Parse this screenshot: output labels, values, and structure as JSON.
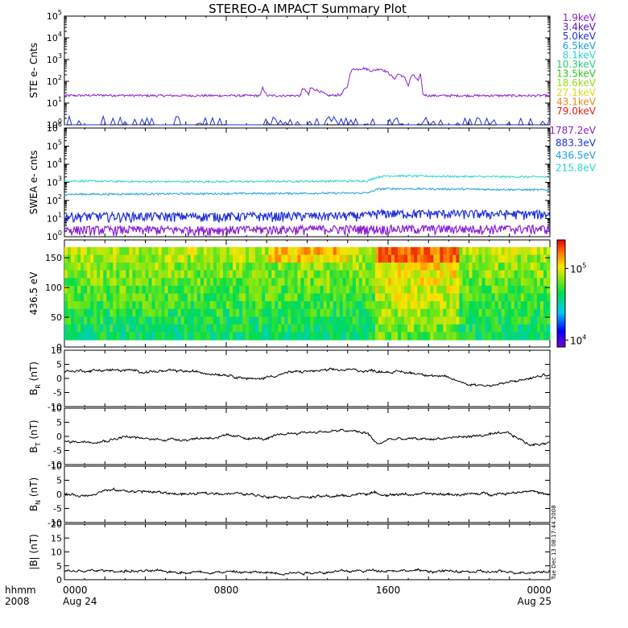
{
  "title": "STEREO-A IMPACT Summary Plot",
  "stamp": "Tue Dec 13 08:17:44 2008",
  "x_axis": {
    "row1_label": "hhmm",
    "row2_label": "2008",
    "ticks": [
      {
        "value": 0,
        "label": "0000",
        "sub": "Aug 24"
      },
      {
        "value": 8,
        "label": "0800",
        "sub": ""
      },
      {
        "value": 16,
        "label": "1600",
        "sub": ""
      },
      {
        "value": 24,
        "label": "0000",
        "sub": "Aug 25"
      }
    ],
    "xlim": [
      0,
      24
    ],
    "unit": "hours"
  },
  "ste_legend": [
    {
      "label": "1.9keV",
      "color": "#8a1fd6"
    },
    {
      "label": "3.4keV",
      "color": "#4b16c8"
    },
    {
      "label": "5.0keV",
      "color": "#1f2fd8"
    },
    {
      "label": "6.5keV",
      "color": "#1aa0e0"
    },
    {
      "label": "8.1keV",
      "color": "#22d8c8"
    },
    {
      "label": "10.3keV",
      "color": "#22d070"
    },
    {
      "label": "13.5keV",
      "color": "#2ac81e"
    },
    {
      "label": "18.6keV",
      "color": "#9ad81a"
    },
    {
      "label": "27.1keV",
      "color": "#e0d81a"
    },
    {
      "label": "43.1keV",
      "color": "#e88a1a"
    },
    {
      "label": "79.0keV",
      "color": "#e0201a"
    }
  ],
  "swea_legend": [
    {
      "label": "1787.2eV",
      "color": "#8a1fd6"
    },
    {
      "label": "883.3eV",
      "color": "#1f2fd8"
    },
    {
      "label": "436.5eV",
      "color": "#1aa0e0"
    },
    {
      "label": "215.8eV",
      "color": "#22d8c8"
    }
  ],
  "panels": [
    {
      "id": "ste",
      "ylabel": "STE e- Cnts"
    },
    {
      "id": "swea",
      "ylabel": "SWEA e- cnts"
    },
    {
      "id": "pad",
      "ylabel": "436.5 eV"
    },
    {
      "id": "br",
      "ylabel": "B",
      "ylabel_sub": "R",
      "ylabel_unit": "(nT)"
    },
    {
      "id": "bt",
      "ylabel": "B",
      "ylabel_sub": "T",
      "ylabel_unit": "(nT)"
    },
    {
      "id": "bn",
      "ylabel": "B",
      "ylabel_sub": "N",
      "ylabel_unit": "(nT)"
    },
    {
      "id": "bmag",
      "ylabel": "|B|",
      "ylabel_unit": "(nT)"
    }
  ],
  "colorbar": {
    "tick_labels": [
      {
        "base": "10",
        "exp": "5",
        "value": 100000
      },
      {
        "base": "10",
        "exp": "4",
        "value": 10000
      }
    ],
    "range": [
      8000,
      250000
    ]
  },
  "chart_data": [
    {
      "type": "line",
      "panel": "ste",
      "ylabel": "STE e- Cnts",
      "yscale": "log",
      "ylim": [
        1,
        100000
      ],
      "yticks": [
        {
          "base": "10",
          "exp": "0"
        },
        {
          "base": "10",
          "exp": "1"
        },
        {
          "base": "10",
          "exp": "2"
        },
        {
          "base": "10",
          "exp": "3"
        },
        {
          "base": "10",
          "exp": "4"
        },
        {
          "base": "10",
          "exp": "5"
        }
      ],
      "series": [
        {
          "name": "1.9keV",
          "color": "#8a1fd6",
          "x": [
            0,
            2,
            4,
            6,
            8,
            9.7,
            9.8,
            10,
            11.7,
            11.75,
            12.1,
            12.15,
            13,
            13.7,
            14,
            14.3,
            14.4,
            14.8,
            15.2,
            15.6,
            16,
            16.3,
            16.5,
            16.8,
            17,
            17.2,
            17.5,
            17.6,
            17.7,
            18,
            20,
            22,
            24
          ],
          "y": [
            22,
            23,
            22,
            22,
            22,
            22,
            50,
            22,
            22,
            50,
            22,
            50,
            22,
            24,
            60,
            420,
            350,
            400,
            300,
            380,
            250,
            120,
            220,
            150,
            60,
            200,
            100,
            200,
            25,
            22,
            22,
            22,
            22
          ]
        },
        {
          "name": "3.4keV",
          "color": "#1f2fd8",
          "x": [
            0,
            24
          ],
          "y": [
            1,
            1
          ]
        }
      ]
    },
    {
      "type": "line",
      "panel": "swea",
      "ylabel": "SWEA e- cnts",
      "yscale": "log",
      "ylim": [
        1,
        1000000
      ],
      "yticks": [
        {
          "base": "10",
          "exp": "0"
        },
        {
          "base": "10",
          "exp": "1"
        },
        {
          "base": "10",
          "exp": "2"
        },
        {
          "base": "10",
          "exp": "3"
        },
        {
          "base": "10",
          "exp": "4"
        },
        {
          "base": "10",
          "exp": "5"
        },
        {
          "base": "10",
          "exp": "6"
        }
      ],
      "series": [
        {
          "name": "215.8eV",
          "color": "#22d8c8",
          "x": [
            0,
            4,
            8,
            12,
            15,
            15.5,
            16,
            20,
            24
          ],
          "y": [
            1200,
            1100,
            1100,
            1150,
            1200,
            2000,
            2300,
            2100,
            2000
          ]
        },
        {
          "name": "436.5eV",
          "color": "#1aa0e0",
          "x": [
            0,
            4,
            8,
            12,
            15,
            15.5,
            16,
            20,
            24
          ],
          "y": [
            220,
            230,
            240,
            250,
            260,
            420,
            450,
            420,
            380
          ]
        },
        {
          "name": "883.3eV",
          "color": "#1f2fd8",
          "x": [
            0,
            8,
            15,
            15.5,
            24
          ],
          "y": [
            14,
            14,
            15,
            20,
            18
          ]
        },
        {
          "name": "1787.2eV",
          "color": "#8a1fd6",
          "x": [
            0,
            8,
            15,
            24
          ],
          "y": [
            2.5,
            2.5,
            2.8,
            2.8
          ]
        }
      ]
    },
    {
      "type": "heatmap",
      "panel": "pad",
      "ylabel": "436.5 eV",
      "xlim": [
        0,
        24
      ],
      "ylim": [
        0,
        180
      ],
      "yticks": [
        0,
        50,
        100,
        150
      ],
      "colorscale": "rainbow",
      "zlim": [
        8000,
        250000
      ]
    },
    {
      "type": "line",
      "panel": "br",
      "ylim": [
        -10,
        10
      ],
      "yticks": [
        -10,
        -5,
        0,
        5,
        10
      ],
      "series": [
        {
          "x": [
            0,
            2,
            4,
            6,
            8,
            9.5,
            10,
            11,
            12,
            14,
            16,
            17,
            18,
            19,
            20,
            21,
            22,
            23,
            24
          ],
          "y": [
            2.5,
            3,
            2.5,
            2.5,
            1.5,
            -0.5,
            0.5,
            2,
            2.5,
            3,
            2.5,
            2,
            1.5,
            0,
            -2,
            -2.5,
            -1.5,
            0,
            1.5
          ]
        }
      ]
    },
    {
      "type": "line",
      "panel": "bt",
      "ylim": [
        -10,
        10
      ],
      "yticks": [
        -10,
        -5,
        0,
        5,
        10
      ],
      "series": [
        {
          "x": [
            0,
            2,
            3,
            4,
            6,
            8,
            10,
            11,
            12,
            14,
            15,
            15.5,
            16,
            18,
            20,
            22,
            23,
            24
          ],
          "y": [
            -2,
            -1.5,
            0,
            -1,
            -1,
            0,
            -1,
            1,
            1.5,
            2,
            1,
            -3,
            -1,
            -1,
            0,
            1,
            -3,
            -2
          ]
        }
      ]
    },
    {
      "type": "line",
      "panel": "bn",
      "ylim": [
        -10,
        10
      ],
      "yticks": [
        -10,
        -5,
        0,
        5,
        10
      ],
      "series": [
        {
          "x": [
            0,
            1,
            2,
            4,
            6,
            8,
            10,
            12,
            14,
            15,
            16,
            18,
            20,
            22,
            23,
            24
          ],
          "y": [
            0,
            -0.5,
            1.5,
            1,
            0,
            0.5,
            -0.5,
            -1,
            -0.5,
            0.5,
            0,
            0,
            0,
            0.5,
            1.5,
            -0.5
          ]
        }
      ]
    },
    {
      "type": "line",
      "panel": "bmag",
      "ylim": [
        0,
        20
      ],
      "yticks": [
        0,
        5,
        10,
        15,
        20
      ],
      "series": [
        {
          "x": [
            0,
            2,
            4,
            6,
            8,
            10,
            12,
            14,
            16,
            18,
            20,
            22,
            24
          ],
          "y": [
            3,
            3.2,
            3,
            2.8,
            2.8,
            2.5,
            2.6,
            3,
            3.5,
            3.1,
            2.8,
            2.7,
            3
          ]
        }
      ]
    }
  ]
}
